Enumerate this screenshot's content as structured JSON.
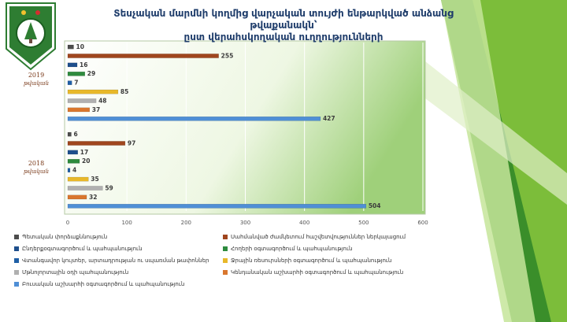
{
  "title_line1": "Տեսչական մարմնի կողմից վարչական տույժի ենթարկված անձանց թվաքանակն՝",
  "title_line2": "ըստ վերահսկողական ուղղությունների",
  "colors": {
    "page_bg": "#ffffff",
    "plot_bg_start": "#ffffff",
    "plot_bg_end": "#9fd07a",
    "green_dark": "#3a8e2a",
    "green_mid": "#7cbd3a",
    "green_light": "#c6e59a",
    "title": "#1f3d6b",
    "year_label": "#7a3a1a"
  },
  "chart_data": {
    "type": "bar",
    "orientation": "horizontal",
    "groups": [
      {
        "label_line1": "2019",
        "label_line2": "թվական"
      },
      {
        "label_line1": "2018",
        "label_line2": "թվական"
      }
    ],
    "xlim": [
      0,
      600
    ],
    "xticks": [
      0,
      100,
      200,
      300,
      400,
      500,
      600
    ],
    "grid": true,
    "legend_position": "bottom",
    "series": [
      {
        "name": "Պետական փորձաքննություն",
        "color": "#4d4d4d",
        "values": [
          10,
          6
        ]
      },
      {
        "name": "Սահմանված ժամկետում հաշվետվություններ ներկայացում",
        "color": "#a0461e",
        "values": [
          255,
          97
        ]
      },
      {
        "name": "Ընդերքօգտագործում և պահպանություն",
        "color": "#1e4f8c",
        "values": [
          16,
          17
        ]
      },
      {
        "name": "Հողերի օգտագործում և պահպանություն",
        "color": "#2e8b3e",
        "values": [
          29,
          20
        ]
      },
      {
        "name": "Վտանգավոր կույտեր, արտադրության ու սպառման թափոններ",
        "color": "#1f5fa6",
        "values": [
          7,
          4
        ]
      },
      {
        "name": "Ջրային ռեսուրսների օգտագործում և պահպանություն",
        "color": "#e8b82a",
        "values": [
          85,
          35
        ]
      },
      {
        "name": "Մթնոլորտային օդի պահպանություն",
        "color": "#b0b0b0",
        "values": [
          48,
          59
        ]
      },
      {
        "name": "Կենդանական աշխարհի օգտագործում և պահպանություն",
        "color": "#d9772e",
        "values": [
          37,
          32
        ]
      },
      {
        "name": "Բուսական աշխարհի օգտագործում և պահպանություն",
        "color": "#4f8fd6",
        "values": [
          427,
          504
        ]
      }
    ]
  }
}
